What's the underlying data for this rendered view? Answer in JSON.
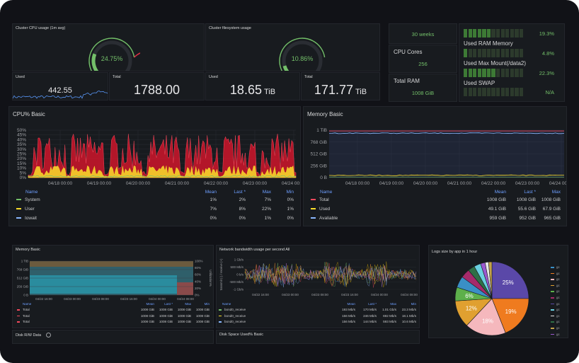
{
  "cpu_usage_gauge": {
    "title": "Cluster CPU usage (1m avg)",
    "value": "24.75%",
    "fraction": 0.2475
  },
  "fs_usage_gauge": {
    "title": "Cluster filesystem usage",
    "value": "10.86%",
    "fraction": 0.1086
  },
  "cpu_used": {
    "title": "Used",
    "value": "442.55"
  },
  "cpu_total": {
    "title": "Total",
    "value": "1788.00"
  },
  "fs_used": {
    "title": "Used",
    "value": "18.65",
    "unit": "TiB"
  },
  "fs_total": {
    "title": "Total",
    "value": "171.77",
    "unit": "TiB"
  },
  "uptime": {
    "value": "30 weeks"
  },
  "cpu_cores": {
    "title": "CPU Cores",
    "value": "256"
  },
  "total_ram": {
    "title": "Total RAM",
    "value": "1008 GiB"
  },
  "bar_gauges": [
    {
      "label": "",
      "value": "19.3%",
      "fraction": 0.193
    },
    {
      "label": "Used RAM Memory",
      "value": "4.8%",
      "fraction": 0.048
    },
    {
      "label": "Used Max Mount(/data2)",
      "value": "22.3%",
      "fraction": 0.223
    },
    {
      "label": "Used SWAP",
      "value": "N/A",
      "fraction": 0
    }
  ],
  "cpu_basic": {
    "title": "CPU% Basic",
    "legend_headers": {
      "name": "Name",
      "mean": "Mean",
      "last": "Last *",
      "max": "Max",
      "min": "Min"
    },
    "legend": [
      {
        "name": "System",
        "mean": "1%",
        "last": "2%",
        "max": "7%",
        "min": "0%",
        "color": "#73bf69"
      },
      {
        "name": "User",
        "mean": "7%",
        "last": "8%",
        "max": "22%",
        "min": "1%",
        "color": "#fade2a"
      },
      {
        "name": "Iowait",
        "mean": "0%",
        "last": "0%",
        "max": "1%",
        "min": "0%",
        "color": "#8ab8ff"
      }
    ]
  },
  "memory_basic": {
    "title": "Memory Basic",
    "legend_headers": {
      "name": "Name",
      "mean": "Mean",
      "last": "Last *",
      "max": "Max"
    },
    "legend": [
      {
        "name": "Total",
        "mean": "1008 GiB",
        "last": "1008 GiB",
        "max": "1008 GiB",
        "color": "#f2495c"
      },
      {
        "name": "Used",
        "mean": "49.1 GiB",
        "last": "55.6 GiB",
        "max": "67.9 GiB",
        "color": "#fade2a"
      },
      {
        "name": "Avaliable",
        "mean": "959 GiB",
        "last": "952 GiB",
        "max": "965 GiB",
        "color": "#8ab8ff"
      }
    ]
  },
  "memory_basic_small": {
    "title": "Memory Basic",
    "legend_headers": {
      "name": "Name",
      "mean": "Mean",
      "last": "Last *",
      "max": "Max",
      "min": "Min"
    },
    "legend": [
      {
        "name": "Total",
        "mean": "1008 GiB",
        "last": "1008 GiB",
        "max": "1008 GiB",
        "min": "1008 GiB",
        "color": "#f2495c"
      },
      {
        "name": "Total",
        "mean": "1008 GiB",
        "last": "1008 GiB",
        "max": "1008 GiB",
        "min": "1008 GiB",
        "color": "#f2495c"
      },
      {
        "name": "Total",
        "mean": "1008 GiB",
        "last": "1008 GiB",
        "max": "1008 GiB",
        "min": "1008 GiB",
        "color": "#f2495c"
      }
    ],
    "right_axis_label": "Utilization%"
  },
  "network": {
    "title": "Network bandwidth usage per second All",
    "axis_label": "transmit (-) / receive (+)",
    "legend_headers": {
      "name": "Name",
      "mean": "Mean",
      "last": "Last *",
      "max": "Max",
      "min": "Min"
    },
    "legend": [
      {
        "name": "bond0_receive",
        "mean": "193 Mb/s",
        "last": "170 Mb/s",
        "max": "1.01 Gb/s",
        "min": "23.3 Mb/s",
        "color": "#73bf69"
      },
      {
        "name": "bond0_receive",
        "mean": "156 Mb/s",
        "last": "246 Mb/s",
        "max": "692 Mb/s",
        "min": "18.1 Mb/s",
        "color": "#fade2a"
      },
      {
        "name": "bond0_receive",
        "mean": "156 Mb/s",
        "last": "144 Mb/s",
        "max": "593 Mb/s",
        "min": "10.6 Mb/s",
        "color": "#8ab8ff"
      }
    ]
  },
  "logs_pie": {
    "title": "Logs size by app in 1 hour"
  },
  "disk_rw": {
    "title": "Disk R/W Data",
    "info_icon": "info-icon"
  },
  "disk_space": {
    "title": "Disk Space Used% Basic"
  },
  "chart_data": [
    {
      "type": "line",
      "title": "CPU% Basic",
      "x": [
        "04/18 00:00",
        "04/19 00:00",
        "04/20 00:00",
        "04/21 00:00",
        "04/22 00:00",
        "04/23 00:00",
        "04/24 00:00"
      ],
      "yticks": [
        "0%",
        "5%",
        "10%",
        "15%",
        "20%",
        "25%",
        "30%",
        "35%",
        "40%",
        "45%",
        "50%"
      ],
      "ylim": [
        0,
        50
      ],
      "series": [
        {
          "name": "System",
          "color": "#73bf69"
        },
        {
          "name": "User",
          "color": "#fade2a"
        },
        {
          "name": "Iowait",
          "color": "#8ab8ff"
        }
      ]
    },
    {
      "type": "line",
      "title": "Memory Basic",
      "x": [
        "04/18 00:00",
        "04/19 00:00",
        "04/20 00:00",
        "04/21 00:00",
        "04/22 00:00",
        "04/23 00:00",
        "04/24 00:00"
      ],
      "yticks": [
        "0 B",
        "256 GiB",
        "512 GiB",
        "768 GiB",
        "1 TiB"
      ],
      "series": [
        {
          "name": "Total",
          "values_gib": 1008,
          "color": "#f2495c"
        },
        {
          "name": "Used",
          "values_gib": 49.1,
          "color": "#fade2a"
        },
        {
          "name": "Avaliable",
          "values_gib": 959,
          "color": "#8ab8ff"
        }
      ]
    },
    {
      "type": "area",
      "title": "Memory Basic",
      "x": [
        "04/22 16:00",
        "04/23 00:00",
        "04/23 08:00",
        "04/23 16:00",
        "04/24 00:00",
        "04/24 08:00"
      ],
      "yticks": [
        "0 B",
        "256 GiB",
        "512 GiB",
        "768 GiB",
        "1 TiB"
      ],
      "y2ticks": [
        "0%",
        "20%",
        "40%",
        "60%",
        "80%",
        "100%"
      ]
    },
    {
      "type": "line",
      "title": "Network bandwidth usage per second All",
      "x": [
        "04/22 16:00",
        "04/23 00:00",
        "04/23 08:00",
        "04/23 16:00",
        "04/24 00:00",
        "04/24 08:00"
      ],
      "yticks": [
        "-1 Gb/s",
        "-500 Mb/s",
        "0 b/s",
        "500 Mb/s",
        "1 Gb/s"
      ]
    },
    {
      "type": "pie",
      "title": "Logs size by app in 1 hour",
      "slices": [
        {
          "label": "25%",
          "value": 25,
          "color": "#5a48a8"
        },
        {
          "label": "19%",
          "value": 19,
          "color": "#ef7b1f"
        },
        {
          "label": "18%",
          "value": 18,
          "color": "#f5b8bd"
        },
        {
          "label": "12%",
          "value": 12,
          "color": "#e0a030"
        },
        {
          "label": "6%",
          "value": 6,
          "color": "#5db04b"
        },
        {
          "label": "",
          "value": 5,
          "color": "#3a8fc6"
        },
        {
          "label": "",
          "value": 4,
          "color": "#a52a6a"
        },
        {
          "label": "",
          "value": 3,
          "color": "#2e6f46"
        },
        {
          "label": "",
          "value": 3,
          "color": "#6ad0e0"
        },
        {
          "label": "",
          "value": 2,
          "color": "#9b59d0"
        },
        {
          "label": "",
          "value": 1.5,
          "color": "#e8e8e8"
        },
        {
          "label": "",
          "value": 1.5,
          "color": "#c4a34a"
        }
      ],
      "legend_colors": [
        "#3a8fc6",
        "#ef7b1f",
        "#f5b8bd",
        "#e0a030",
        "#5db04b",
        "#a52a6a",
        "#5a48a8",
        "#6ad0e0",
        "#e8e8e8",
        "#2e6f46",
        "#c4a34a",
        "#9b59d0"
      ],
      "legend_labels": [
        "gc",
        "gc",
        "gc",
        "gc",
        "gc",
        "gc",
        "gc",
        "gc",
        "gc",
        "gc",
        "gc",
        "gc"
      ]
    }
  ]
}
